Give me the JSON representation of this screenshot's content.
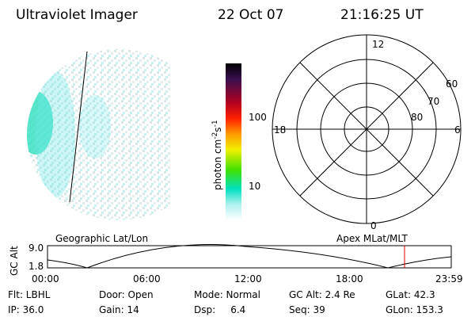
{
  "header": {
    "instrument": "Ultraviolet Imager",
    "date": "22 Oct 07",
    "time": "21:16:25 UT"
  },
  "colorbar": {
    "label": [
      "photon cm",
      "-2",
      "s",
      "-1"
    ],
    "ticks": [
      "100",
      "10"
    ]
  },
  "polar": {
    "mlt_labels": [
      "12",
      "18",
      "6",
      "0"
    ],
    "lat_labels": [
      "60",
      "70",
      "80"
    ]
  },
  "orbit": {
    "left_title": "Geographic Lat/Lon",
    "right_title": "Apex MLat/MLT",
    "y_label": "GC Alt",
    "y_ticks": [
      "9.0",
      "1.8"
    ],
    "x_ticks": [
      "00:00",
      "06:00",
      "12:00",
      "18:00",
      "23:59"
    ]
  },
  "info": [
    [
      "Flt: LBHL",
      "Door: Open",
      "Mode: Normal",
      "GC Alt: 2.4 Re",
      "GLat: 42.3"
    ],
    [
      "IP: 36.0",
      "Gain: 14",
      "Dsp:     6.4",
      "Seq: 39",
      "GLon: 153.3"
    ]
  ]
}
